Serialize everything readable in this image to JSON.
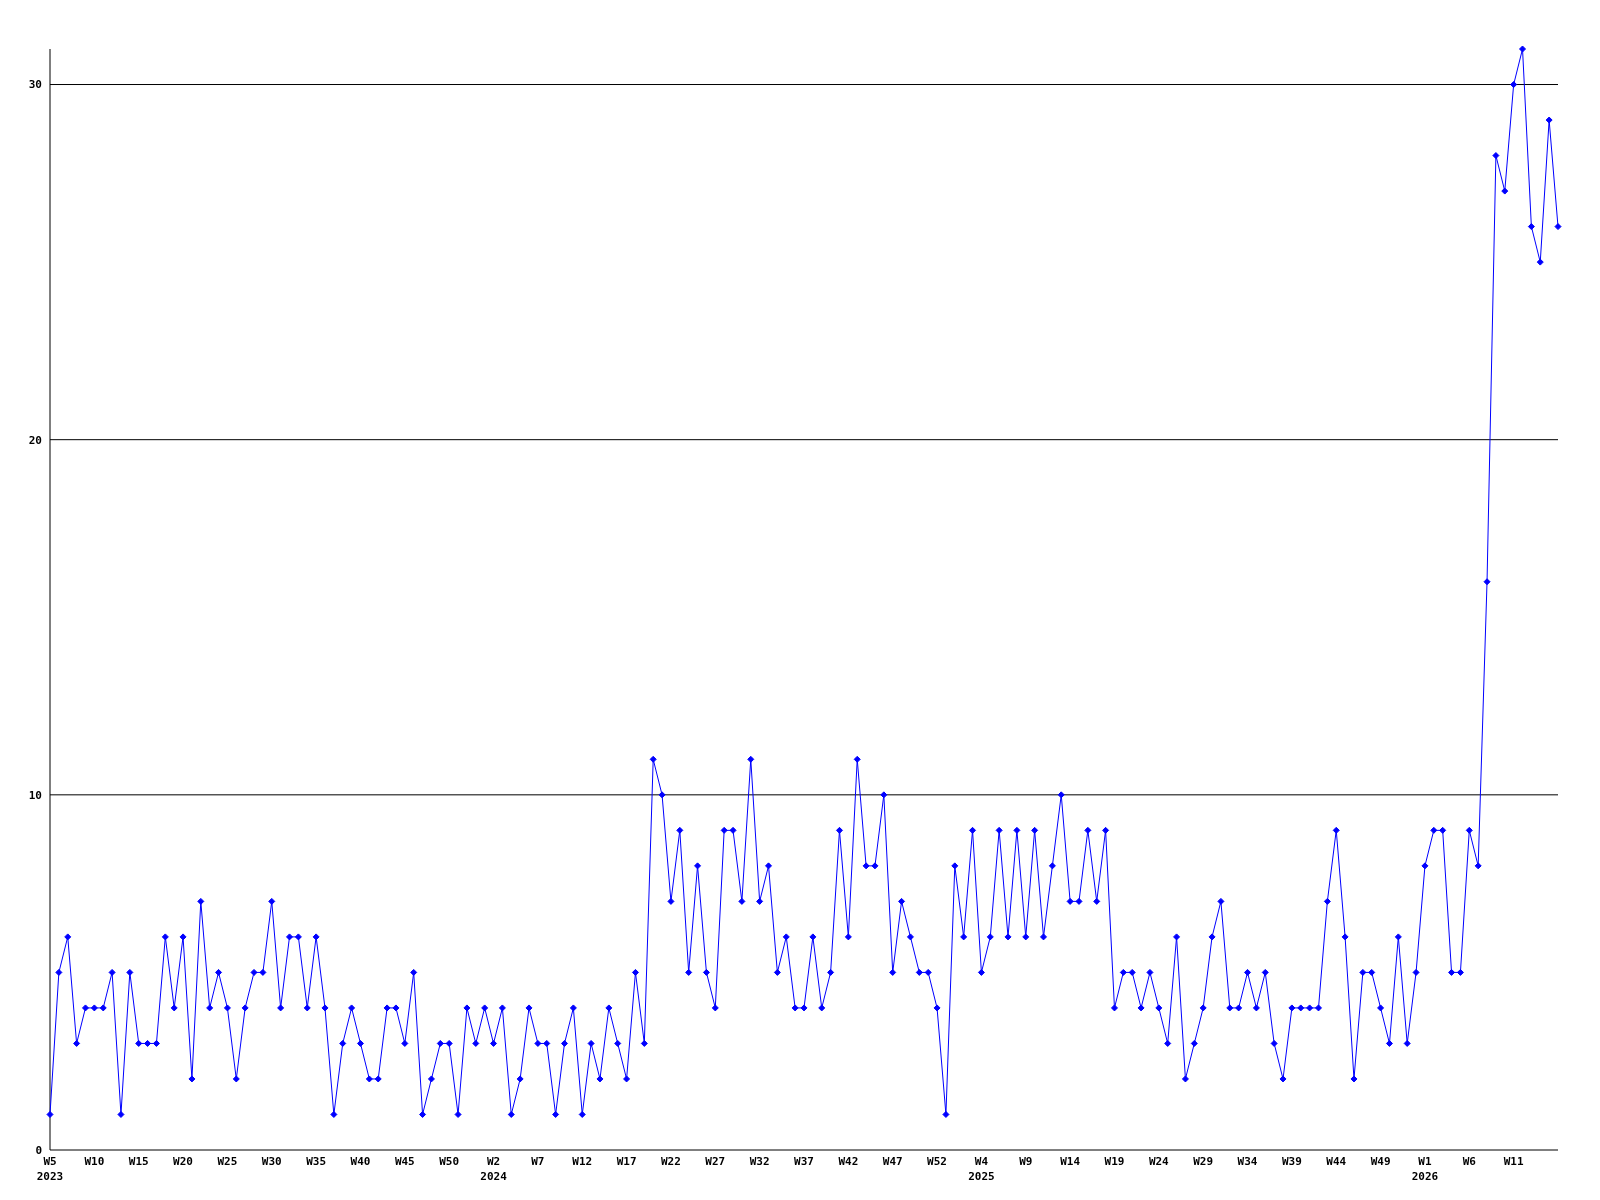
{
  "chart_data": {
    "type": "line",
    "categories": [
      "W5\n2023",
      null,
      null,
      null,
      null,
      "W10",
      null,
      null,
      null,
      null,
      "W15",
      null,
      null,
      null,
      null,
      "W20",
      null,
      null,
      null,
      null,
      "W25",
      null,
      null,
      null,
      null,
      "W30",
      null,
      null,
      null,
      null,
      "W35",
      null,
      null,
      null,
      null,
      "W40",
      null,
      null,
      null,
      null,
      "W45",
      null,
      null,
      null,
      null,
      "W50",
      null,
      null,
      null,
      null,
      "W2\n2024",
      null,
      null,
      null,
      null,
      "W7",
      null,
      null,
      null,
      null,
      "W12",
      null,
      null,
      null,
      null,
      "W17",
      null,
      null,
      null,
      null,
      "W22",
      null,
      null,
      null,
      null,
      "W27",
      null,
      null,
      null,
      null,
      "W32",
      null,
      null,
      null,
      null,
      "W37",
      null,
      null,
      null,
      null,
      "W42",
      null,
      null,
      null,
      null,
      "W47",
      null,
      null,
      null,
      null,
      "W52",
      null,
      null,
      null,
      null,
      "W4\n2025",
      null,
      null,
      null,
      null,
      "W9",
      null,
      null,
      null,
      null,
      "W14",
      null,
      null,
      null,
      null,
      "W19",
      null,
      null,
      null,
      null,
      "W24",
      null,
      null,
      null,
      null,
      "W29",
      null,
      null,
      null,
      null,
      "W34",
      null,
      null,
      null,
      null,
      "W39",
      null,
      null,
      null,
      null,
      "W44",
      null,
      null,
      null,
      null,
      "W49",
      null,
      null,
      null,
      null,
      "W1\n2026",
      null,
      null,
      null,
      null,
      "W6",
      null,
      null,
      null,
      null,
      "W11",
      null,
      null,
      null,
      null,
      null
    ],
    "series": [
      {
        "color": "#0000ff",
        "values": [
          1,
          5,
          6,
          3,
          4,
          4,
          4,
          5,
          1,
          5,
          3,
          3,
          3,
          6,
          4,
          6,
          2,
          7,
          4,
          5,
          4,
          2,
          4,
          5,
          5,
          7,
          4,
          6,
          6,
          4,
          6,
          4,
          1,
          3,
          4,
          3,
          2,
          2,
          4,
          4,
          3,
          5,
          1,
          2,
          3,
          3,
          1,
          4,
          3,
          4,
          3,
          4,
          1,
          2,
          4,
          3,
          3,
          1,
          3,
          4,
          1,
          3,
          2,
          4,
          3,
          2,
          5,
          3,
          11,
          10,
          7,
          9,
          5,
          8,
          5,
          4,
          9,
          9,
          7,
          11,
          7,
          8,
          5,
          6,
          4,
          4,
          6,
          4,
          5,
          9,
          6,
          11,
          8,
          8,
          10,
          5,
          7,
          6,
          5,
          5,
          4,
          1,
          8,
          6,
          9,
          5,
          6,
          9,
          6,
          9,
          6,
          9,
          6,
          8,
          10,
          7,
          7,
          9,
          7,
          9,
          4,
          5,
          5,
          4,
          5,
          4,
          3,
          6,
          2,
          3,
          4,
          6,
          7,
          4,
          4,
          5,
          4,
          5,
          3,
          2,
          4,
          4,
          4,
          4,
          7,
          9,
          6,
          2,
          5,
          5,
          4,
          3,
          6,
          3,
          5,
          8,
          9,
          9,
          5,
          5,
          9,
          8,
          16,
          28,
          27,
          30,
          31,
          26,
          25,
          29,
          26
        ]
      }
    ],
    "ylim": [
      0,
      31
    ],
    "yticks": [
      0,
      10,
      20,
      30
    ],
    "grid": "y",
    "marker": "diamond",
    "line_style": "solid"
  }
}
